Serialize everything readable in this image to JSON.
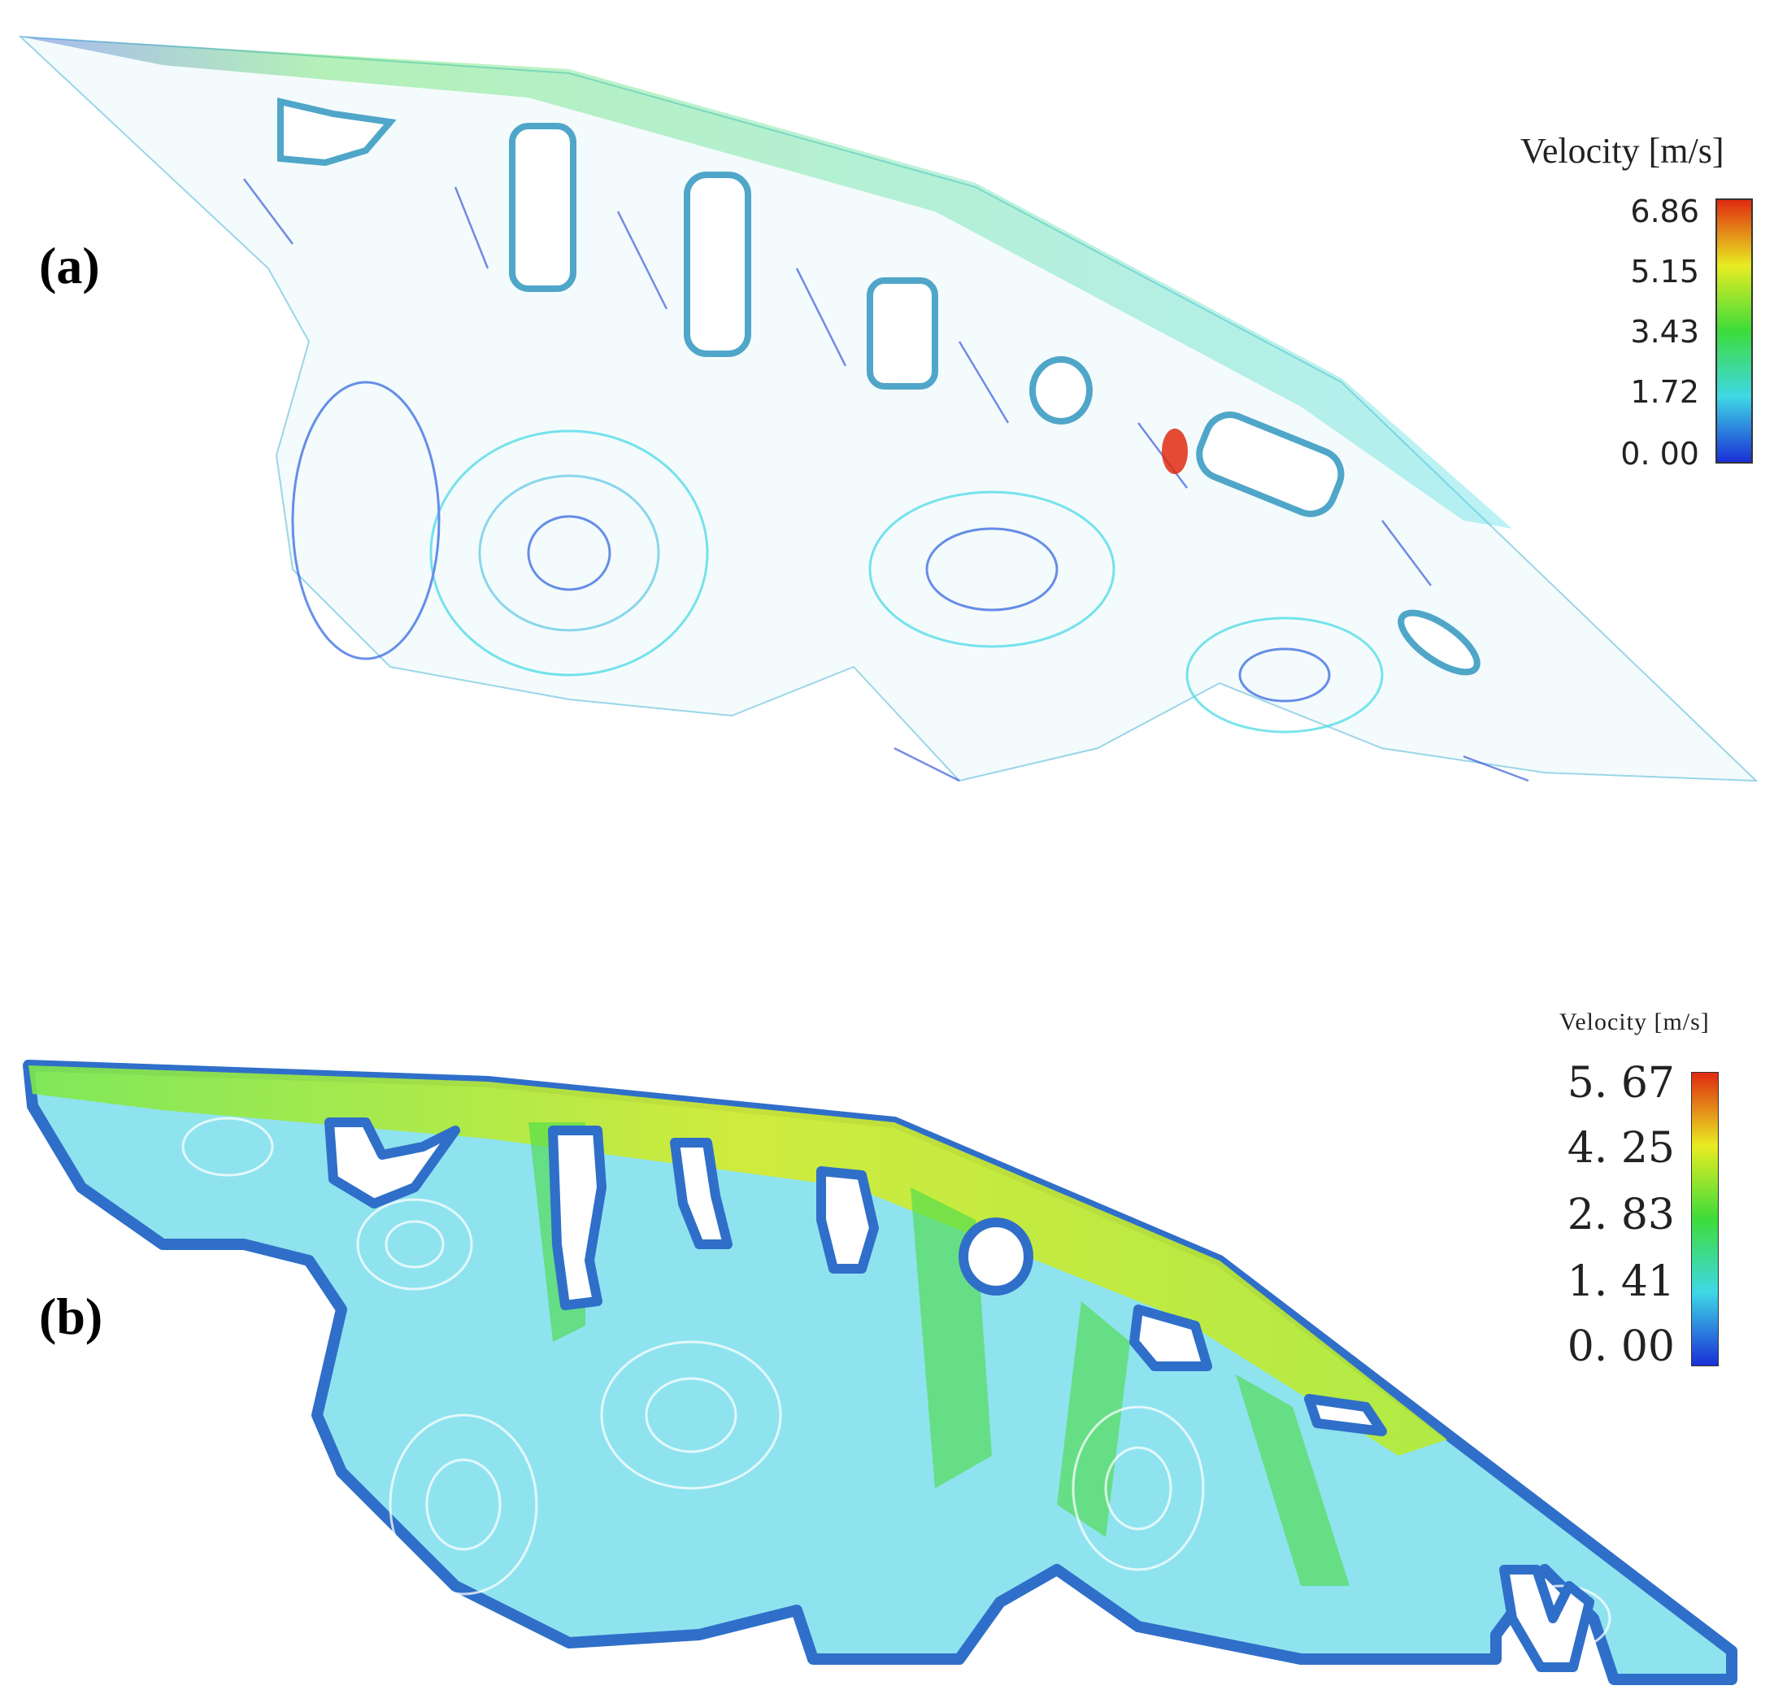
{
  "panel_a": {
    "label": "(a)",
    "legend": {
      "title": "Velocity [m/s]",
      "ticks": [
        "6.86",
        "5.15",
        "3.43",
        "1.72",
        "0. 00"
      ],
      "max": 6.86,
      "min": 0.0
    }
  },
  "panel_b": {
    "label": "(b)",
    "legend": {
      "title": "Velocity [m/s]",
      "ticks": [
        "5. 67",
        "4. 25",
        "2. 83",
        "1. 41",
        "0. 00"
      ],
      "max": 5.67,
      "min": 0.0
    }
  },
  "colors": {
    "blue": "#1a3fd6",
    "cyan": "#3fd8e6",
    "green": "#3ddc3a",
    "yellow": "#e8ec22",
    "red": "#e02a10",
    "wall_blue": "#2f6fc9"
  }
}
